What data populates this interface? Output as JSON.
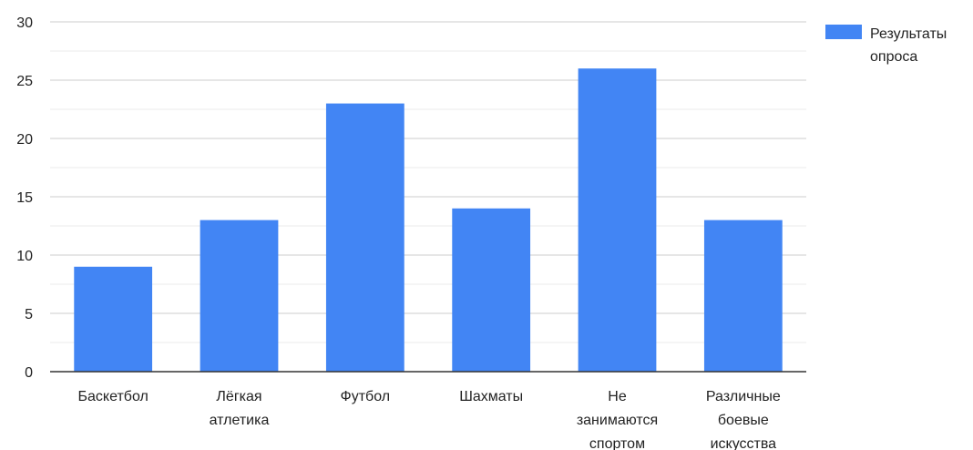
{
  "chart_data": {
    "type": "bar",
    "categories": [
      [
        "Баскетбол"
      ],
      [
        "Лёгкая",
        "атлетика"
      ],
      [
        "Футбол"
      ],
      [
        "Шахматы"
      ],
      [
        "Не",
        "занимаются",
        "спортом"
      ],
      [
        "Различные",
        "боевые",
        "искусства"
      ]
    ],
    "series": [
      {
        "name": [
          "Результаты",
          "опроса"
        ],
        "values": [
          9,
          13,
          23,
          14,
          26,
          13
        ],
        "color": "#4285f4"
      }
    ],
    "ylim": [
      0,
      30
    ],
    "yticks": [
      "0",
      "5",
      "10",
      "15",
      "20",
      "25",
      "30"
    ],
    "grid": true,
    "legend_position": "right"
  }
}
